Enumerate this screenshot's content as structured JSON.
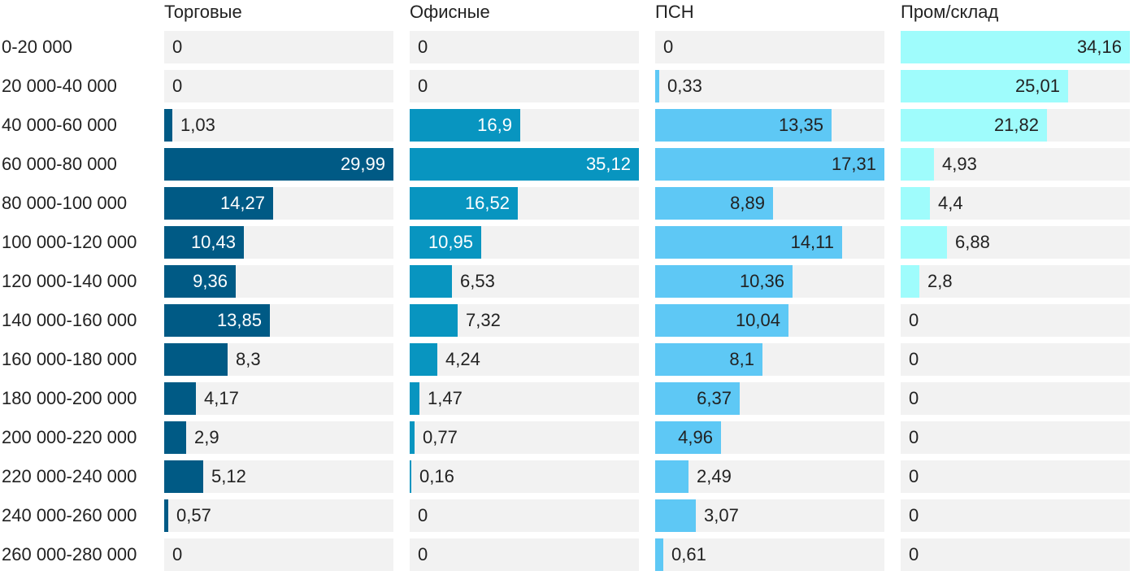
{
  "chart_data": {
    "type": "bar",
    "orientation": "horizontal",
    "layout": "small-multiples",
    "categories": [
      "0-20 000",
      "20 000-40 000",
      "40 000-60 000",
      "60 000-80 000",
      "80 000-100 000",
      "100 000-120 000",
      "120 000-140 000",
      "140 000-160 000",
      "160 000-180 000",
      "180 000-200 000",
      "200 000-220 000",
      "220 000-240 000",
      "240 000-260 000",
      "260 000-280 000"
    ],
    "series": [
      {
        "name": "Торговые",
        "color": "#005a85",
        "max": 29.99,
        "values": [
          0,
          0,
          1.03,
          29.99,
          14.27,
          10.43,
          9.36,
          13.85,
          8.3,
          4.17,
          2.9,
          5.12,
          0.57,
          0
        ],
        "labels": [
          "0",
          "0",
          "1,03",
          "29,99",
          "14,27",
          "10,43",
          "9,36",
          "13,85",
          "8,3",
          "4,17",
          "2,9",
          "5,12",
          "0,57",
          "0"
        ]
      },
      {
        "name": "Офисные",
        "color": "#0895c0",
        "max": 35.12,
        "values": [
          0,
          0,
          16.9,
          35.12,
          16.52,
          10.95,
          6.53,
          7.32,
          4.24,
          1.47,
          0.77,
          0.16,
          0,
          0
        ],
        "labels": [
          "0",
          "0",
          "16,9",
          "35,12",
          "16,52",
          "10,95",
          "6,53",
          "7,32",
          "4,24",
          "1,47",
          "0,77",
          "0,16",
          "0",
          "0"
        ]
      },
      {
        "name": "ПСН",
        "color": "#5ec8f5",
        "max": 17.31,
        "values": [
          0,
          0.33,
          13.35,
          17.31,
          8.89,
          14.11,
          10.36,
          10.04,
          8.1,
          6.37,
          4.96,
          2.49,
          3.07,
          0.61
        ],
        "labels": [
          "0",
          "0,33",
          "13,35",
          "17,31",
          "8,89",
          "14,11",
          "10,36",
          "10,04",
          "8,1",
          "6,37",
          "4,96",
          "2,49",
          "3,07",
          "0,61"
        ]
      },
      {
        "name": "Пром/склад",
        "color": "#9ffcfc",
        "max": 34.16,
        "values": [
          34.16,
          25.01,
          21.82,
          4.93,
          4.4,
          6.88,
          2.8,
          0,
          0,
          0,
          0,
          0,
          0,
          0
        ],
        "labels": [
          "34,16",
          "25,01",
          "21,82",
          "4,93",
          "4,4",
          "6,88",
          "2,8",
          "0",
          "0",
          "0",
          "0",
          "0",
          "0",
          "0"
        ]
      }
    ],
    "legend": "none",
    "grid": false
  }
}
